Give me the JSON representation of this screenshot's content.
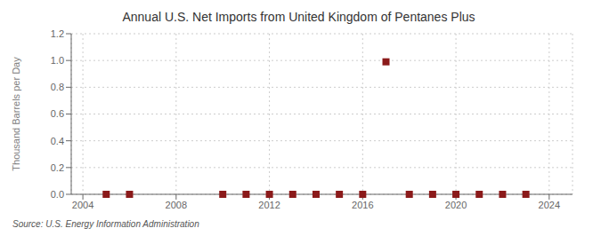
{
  "chart_data": {
    "type": "scatter",
    "title": "Annual U.S. Net Imports from United Kingdom of Pentanes Plus",
    "ylabel": "Thousand Barrels per Day",
    "source": "Source: U.S. Energy Information Administration",
    "x": [
      2005,
      2006,
      2010,
      2011,
      2012,
      2013,
      2014,
      2015,
      2016,
      2017,
      2018,
      2019,
      2020,
      2021,
      2022,
      2023
    ],
    "values": [
      0.0,
      0.0,
      0.0,
      0.0,
      0.0,
      0.0,
      0.0,
      0.0,
      0.0,
      0.99,
      0.0,
      0.0,
      0.0,
      0.0,
      0.0,
      0.0
    ],
    "color": "#8b1a1a",
    "marker": "square",
    "grid": true,
    "xlim": [
      2003.5,
      2025
    ],
    "xticks": [
      2004,
      2008,
      2012,
      2016,
      2020,
      2024
    ],
    "ylim": [
      0.0,
      1.2
    ],
    "yticks": [
      {
        "value": 0,
        "label": "0.0"
      },
      0.2,
      0.4,
      0.6,
      0.8,
      {
        "value": 1,
        "label": "1.0"
      },
      1.2
    ]
  }
}
